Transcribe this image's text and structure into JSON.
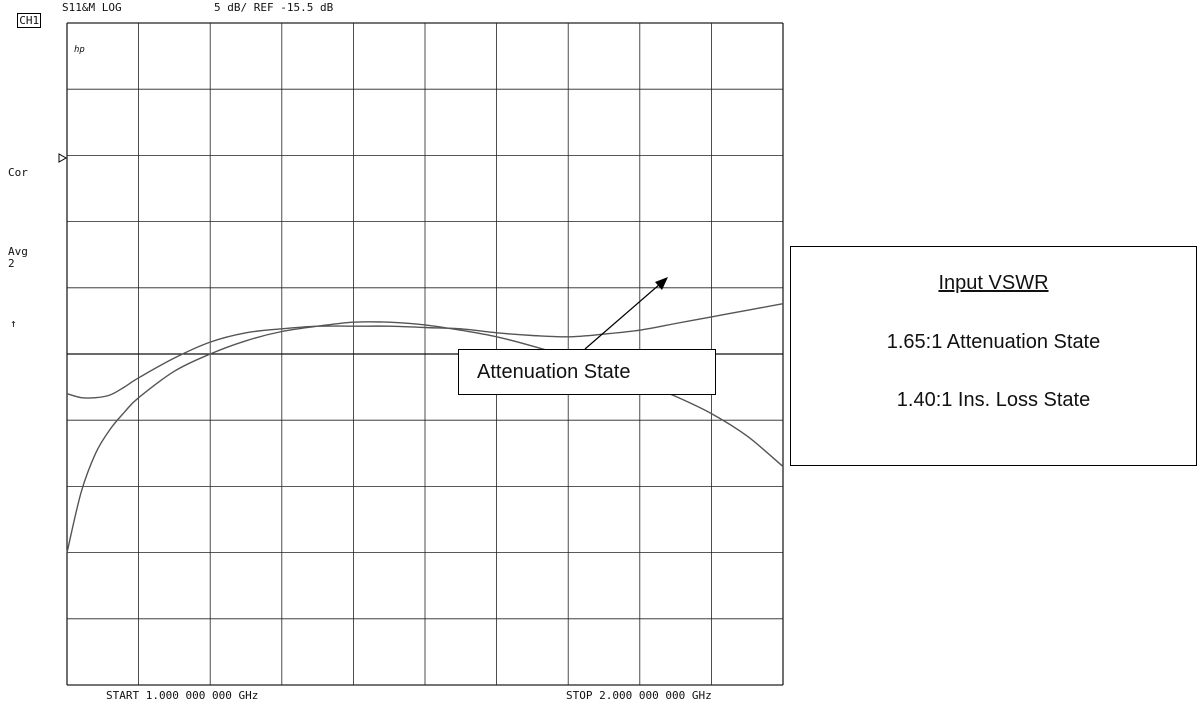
{
  "header": {
    "channel": "CH1",
    "measurement": "S11&M LOG",
    "scale": "5 dB/ REF -15.5 dB"
  },
  "side_labels": {
    "logo": "hp",
    "cor": "Cor",
    "avg": "Avg",
    "avg_factor": "2",
    "ref_arrow": "↑"
  },
  "footer": {
    "start": "START 1.000 000 000 GHz",
    "stop": "STOP 2.000 000 000 GHz"
  },
  "annotation": {
    "label": "Attenuation State"
  },
  "legend": {
    "title": "Input VSWR",
    "line1": "1.65:1 Attenuation State",
    "line2": "1.40:1 Ins. Loss State"
  },
  "chart_data": {
    "type": "line",
    "xlim": [
      1.0,
      2.0
    ],
    "ylim": [
      -40.5,
      9.5
    ],
    "reference_dB": -15.5,
    "scale_dB_per_div": 5,
    "grid": true,
    "series": [
      {
        "name": "Attenuation State",
        "color": "#555555",
        "x": [
          1.0,
          1.02,
          1.04,
          1.06,
          1.08,
          1.1,
          1.15,
          1.2,
          1.25,
          1.3,
          1.35,
          1.4,
          1.45,
          1.5,
          1.55,
          1.6,
          1.65,
          1.7,
          1.75,
          1.8,
          1.85,
          1.9,
          1.95,
          2.0
        ],
        "y": [
          -30.5,
          -25.9,
          -23.0,
          -21.2,
          -19.9,
          -18.8,
          -16.8,
          -15.5,
          -14.5,
          -13.8,
          -13.4,
          -13.1,
          -13.1,
          -13.3,
          -13.7,
          -14.2,
          -14.9,
          -15.7,
          -16.6,
          -17.6,
          -18.7,
          -20.0,
          -21.7,
          -24.0
        ]
      },
      {
        "name": "Ins. Loss State",
        "color": "#555555",
        "x": [
          1.0,
          1.02,
          1.04,
          1.06,
          1.08,
          1.1,
          1.15,
          1.2,
          1.25,
          1.3,
          1.35,
          1.4,
          1.45,
          1.5,
          1.55,
          1.6,
          1.65,
          1.7,
          1.75,
          1.8,
          1.85,
          1.9,
          1.95,
          2.0
        ],
        "y": [
          -18.5,
          -18.8,
          -18.8,
          -18.6,
          -18.0,
          -17.3,
          -15.8,
          -14.6,
          -13.9,
          -13.6,
          -13.4,
          -13.4,
          -13.4,
          -13.5,
          -13.6,
          -13.9,
          -14.1,
          -14.2,
          -14.0,
          -13.7,
          -13.2,
          -12.7,
          -12.2,
          -11.7
        ]
      }
    ]
  }
}
